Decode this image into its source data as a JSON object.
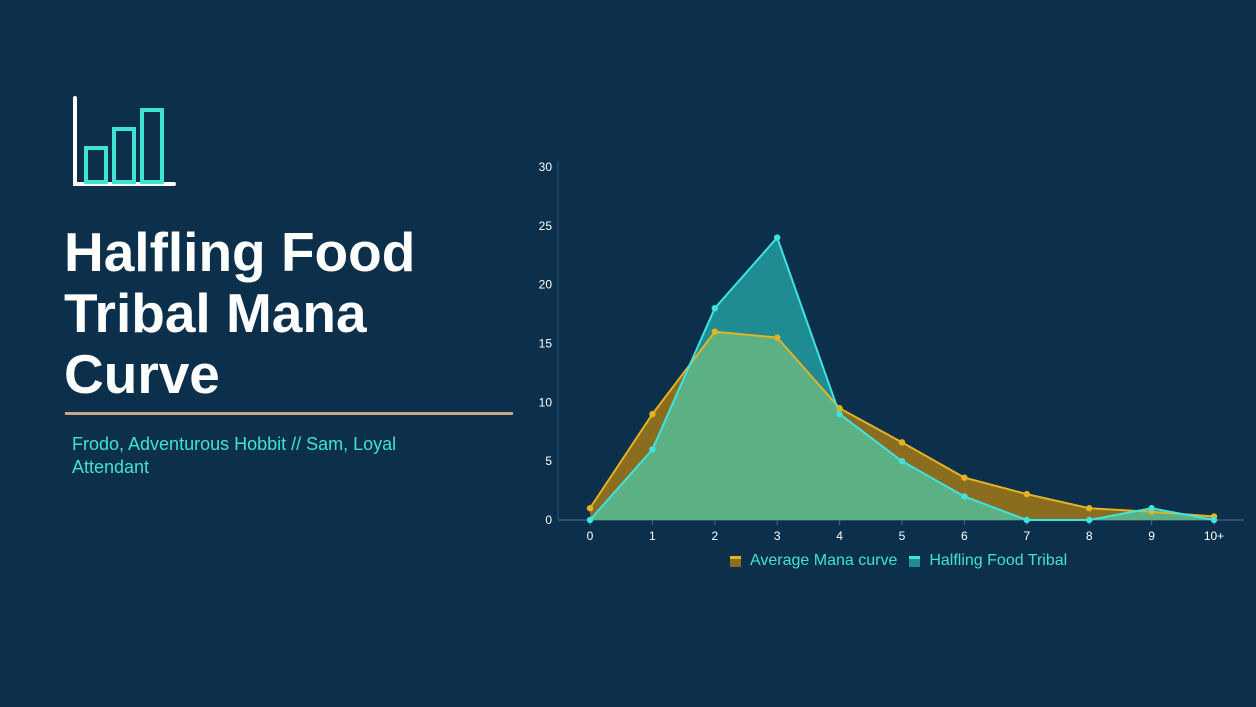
{
  "slide": {
    "title_lines": [
      "Halfling Food",
      "Tribal Mana",
      "Curve"
    ],
    "subtitle": "Frodo, Adventurous Hobbit // Sam, Loyal Attendant",
    "logo_icon": "bar-chart-icon"
  },
  "colors": {
    "background": "#0c2f4b",
    "accent": "#3fe3d6",
    "divider": "#c9a781",
    "average_line": "#e2b324",
    "average_fill": "#8a6d1e",
    "halfling_line": "#3fe3e1",
    "halfling_fill": "#1f8c94",
    "overlap_fill": "#5cb184"
  },
  "chart_data": {
    "type": "area",
    "categories": [
      "0",
      "1",
      "2",
      "3",
      "4",
      "5",
      "6",
      "7",
      "8",
      "9",
      "10+"
    ],
    "series": [
      {
        "name": "Average Mana curve",
        "values": [
          1,
          9,
          16,
          15.5,
          9.5,
          6.6,
          3.6,
          2.2,
          1,
          0.7,
          0.3
        ]
      },
      {
        "name": "Halfling Food Tribal",
        "values": [
          0,
          6,
          18,
          24,
          9,
          5,
          2,
          0,
          0,
          1,
          0
        ]
      }
    ],
    "ylim": [
      0,
      30
    ],
    "yticks": [
      "0",
      "5",
      "10",
      "15",
      "20",
      "25",
      "30"
    ],
    "grid": false,
    "legend_position": "bottom"
  }
}
